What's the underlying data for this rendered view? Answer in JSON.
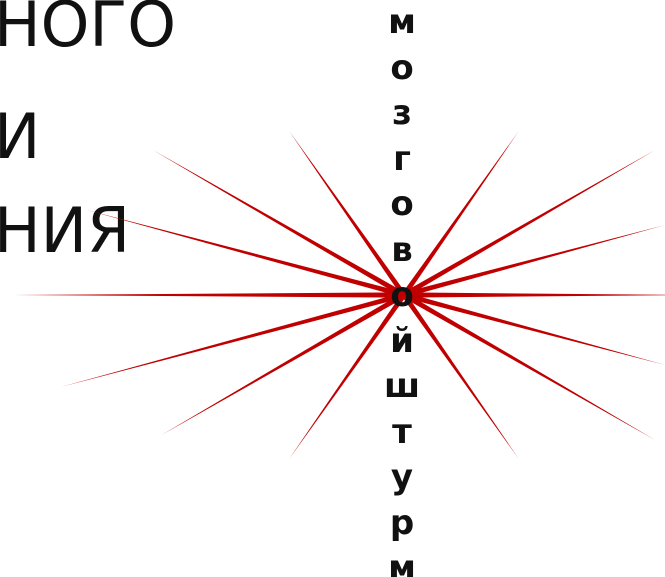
{
  "left_text": {
    "line1": "НОГО",
    "line2": "И",
    "line3": "НИЯ"
  },
  "vertical_word": [
    "м",
    "о",
    "з",
    "г",
    "о",
    "в",
    "о",
    "й",
    "ш",
    "т",
    "у",
    "р",
    "м"
  ],
  "colors": {
    "burst_lines": "#c00000",
    "text": "#111111",
    "background": "#ffffff"
  }
}
